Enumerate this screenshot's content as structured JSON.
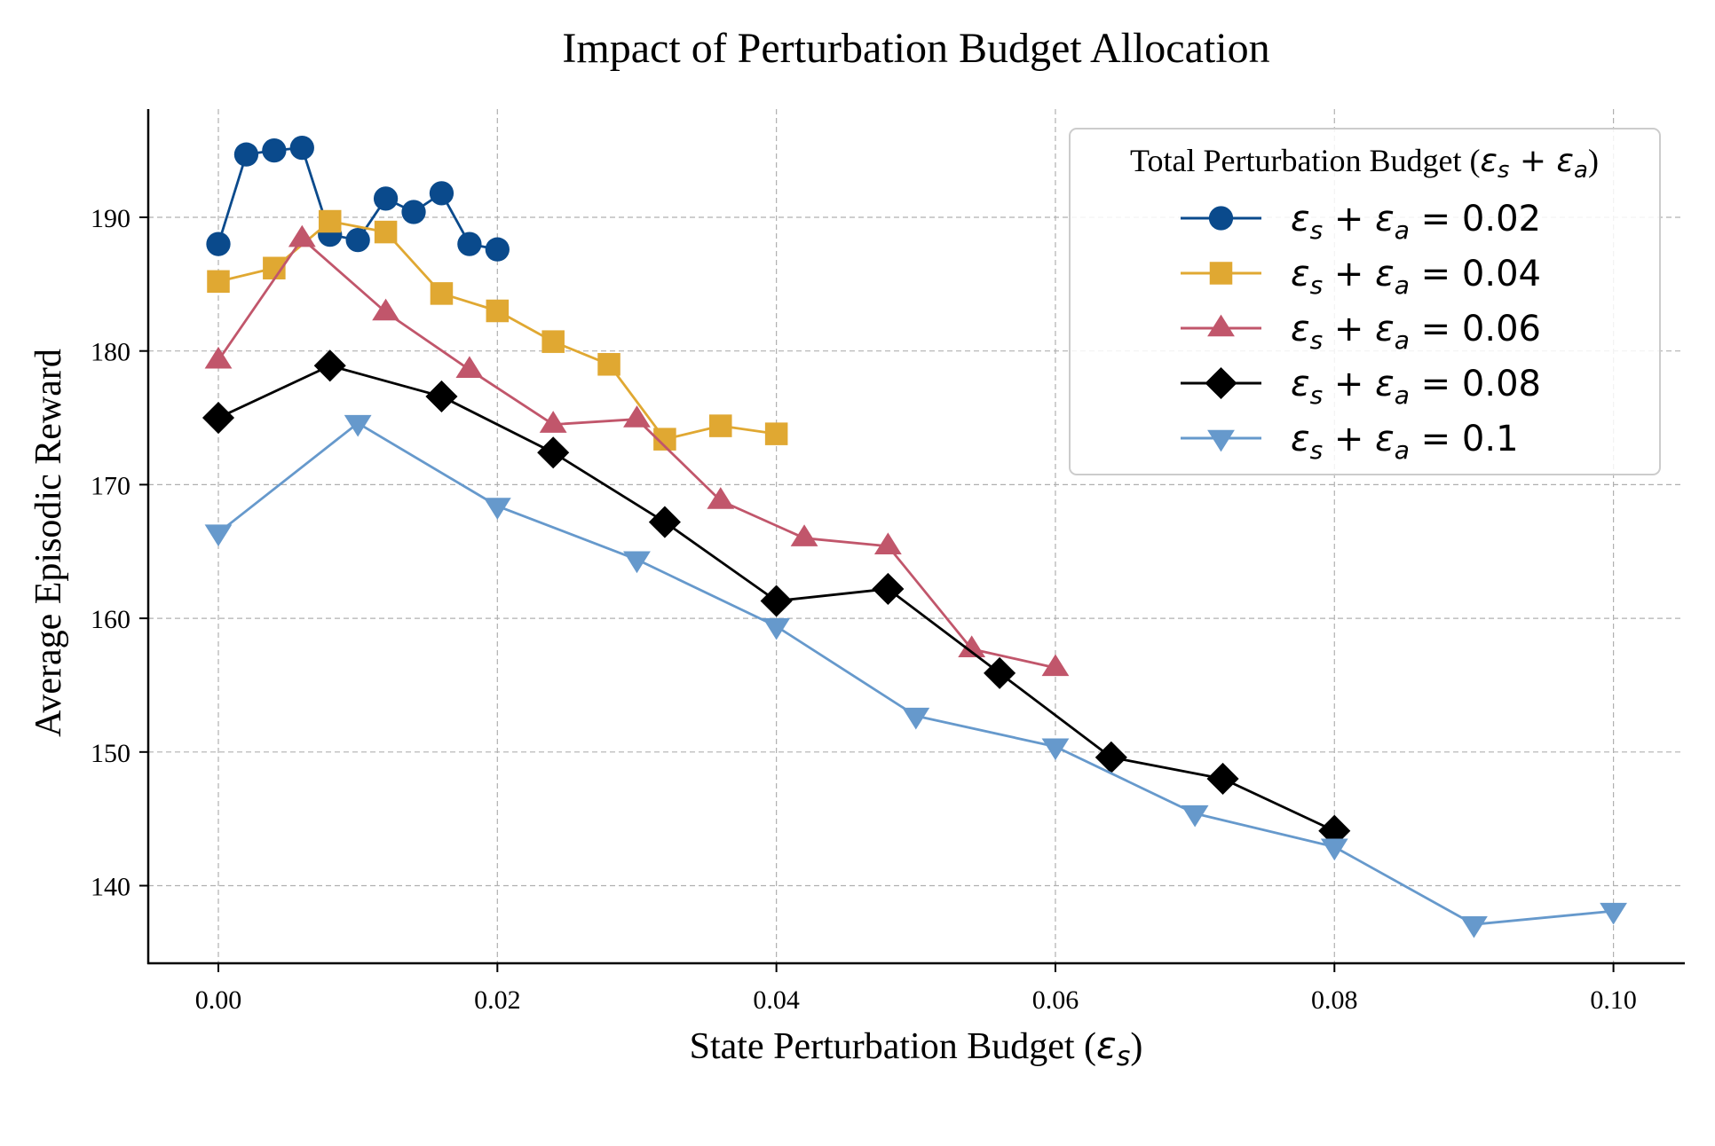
{
  "chart_data": {
    "type": "line",
    "title": "Impact of Perturbation Budget Allocation",
    "xlabel": "State Perturbation Budget (ε_s)",
    "xlabel_parts": {
      "main": "State Perturbation Budget (",
      "symbol": "ε",
      "sub": "s",
      "close": ")"
    },
    "ylabel": "Average Episodic Reward",
    "xlim": [
      -0.005,
      0.105
    ],
    "ylim": [
      134.5,
      198.5
    ],
    "xticks": [
      0.0,
      0.02,
      0.04,
      0.06,
      0.08,
      0.1
    ],
    "xtick_labels": [
      "0.00",
      "0.02",
      "0.04",
      "0.06",
      "0.08",
      "0.10"
    ],
    "yticks": [
      140,
      150,
      160,
      170,
      180,
      190
    ],
    "ytick_labels": [
      "140",
      "150",
      "160",
      "170",
      "180",
      "190"
    ],
    "grid": true,
    "legend": {
      "title": "Total Perturbation Budget (ε_s + ε_a)",
      "title_parts": {
        "main": "Total Perturbation Budget (",
        "e1": "ε",
        "s1": "s",
        "plus": " + ",
        "e2": "ε",
        "s2": "a",
        "close": ")"
      },
      "placement": "top-right"
    },
    "series": [
      {
        "name": "ε_s + ε_a = 0.02",
        "total": "0.02",
        "color": "#0a4a8c",
        "marker": "circle",
        "x": [
          0.0,
          0.002,
          0.004,
          0.006,
          0.008,
          0.01,
          0.012,
          0.014,
          0.016,
          0.018,
          0.02
        ],
        "y": [
          188.0,
          194.7,
          195.0,
          195.2,
          188.7,
          188.3,
          191.4,
          190.4,
          191.8,
          188.0,
          187.6
        ]
      },
      {
        "name": "ε_s + ε_a = 0.04",
        "total": "0.04",
        "color": "#e0a832",
        "marker": "square",
        "x": [
          0.0,
          0.004,
          0.008,
          0.012,
          0.016,
          0.02,
          0.024,
          0.028,
          0.032,
          0.036,
          0.04
        ],
        "y": [
          185.2,
          186.2,
          189.7,
          188.9,
          184.3,
          183.0,
          180.7,
          179.0,
          173.4,
          174.4,
          173.8
        ]
      },
      {
        "name": "ε_s + ε_a = 0.06",
        "total": "0.06",
        "color": "#c1566b",
        "marker": "triangle-up",
        "x": [
          0.0,
          0.006,
          0.012,
          0.018,
          0.024,
          0.03,
          0.036,
          0.042,
          0.048,
          0.054,
          0.06
        ],
        "y": [
          179.3,
          188.4,
          182.9,
          178.6,
          174.5,
          174.9,
          168.8,
          166.0,
          165.4,
          157.7,
          156.3
        ]
      },
      {
        "name": "ε_s + ε_a = 0.08",
        "total": "0.08",
        "color": "#000000",
        "marker": "diamond",
        "x": [
          0.0,
          0.008,
          0.016,
          0.024,
          0.032,
          0.04,
          0.048,
          0.056,
          0.064,
          0.072,
          0.08
        ],
        "y": [
          175.0,
          178.9,
          176.6,
          172.4,
          167.2,
          161.3,
          162.2,
          155.9,
          149.6,
          148.0,
          144.1
        ]
      },
      {
        "name": "ε_s + ε_a = 0.1",
        "total": "0.1",
        "color": "#6699cc",
        "marker": "triangle-down",
        "x": [
          0.0,
          0.01,
          0.02,
          0.03,
          0.04,
          0.05,
          0.06,
          0.07,
          0.08,
          0.09,
          0.1
        ],
        "y": [
          166.4,
          174.6,
          168.4,
          164.4,
          159.4,
          152.7,
          150.4,
          145.4,
          142.9,
          137.1,
          138.1
        ]
      }
    ]
  }
}
